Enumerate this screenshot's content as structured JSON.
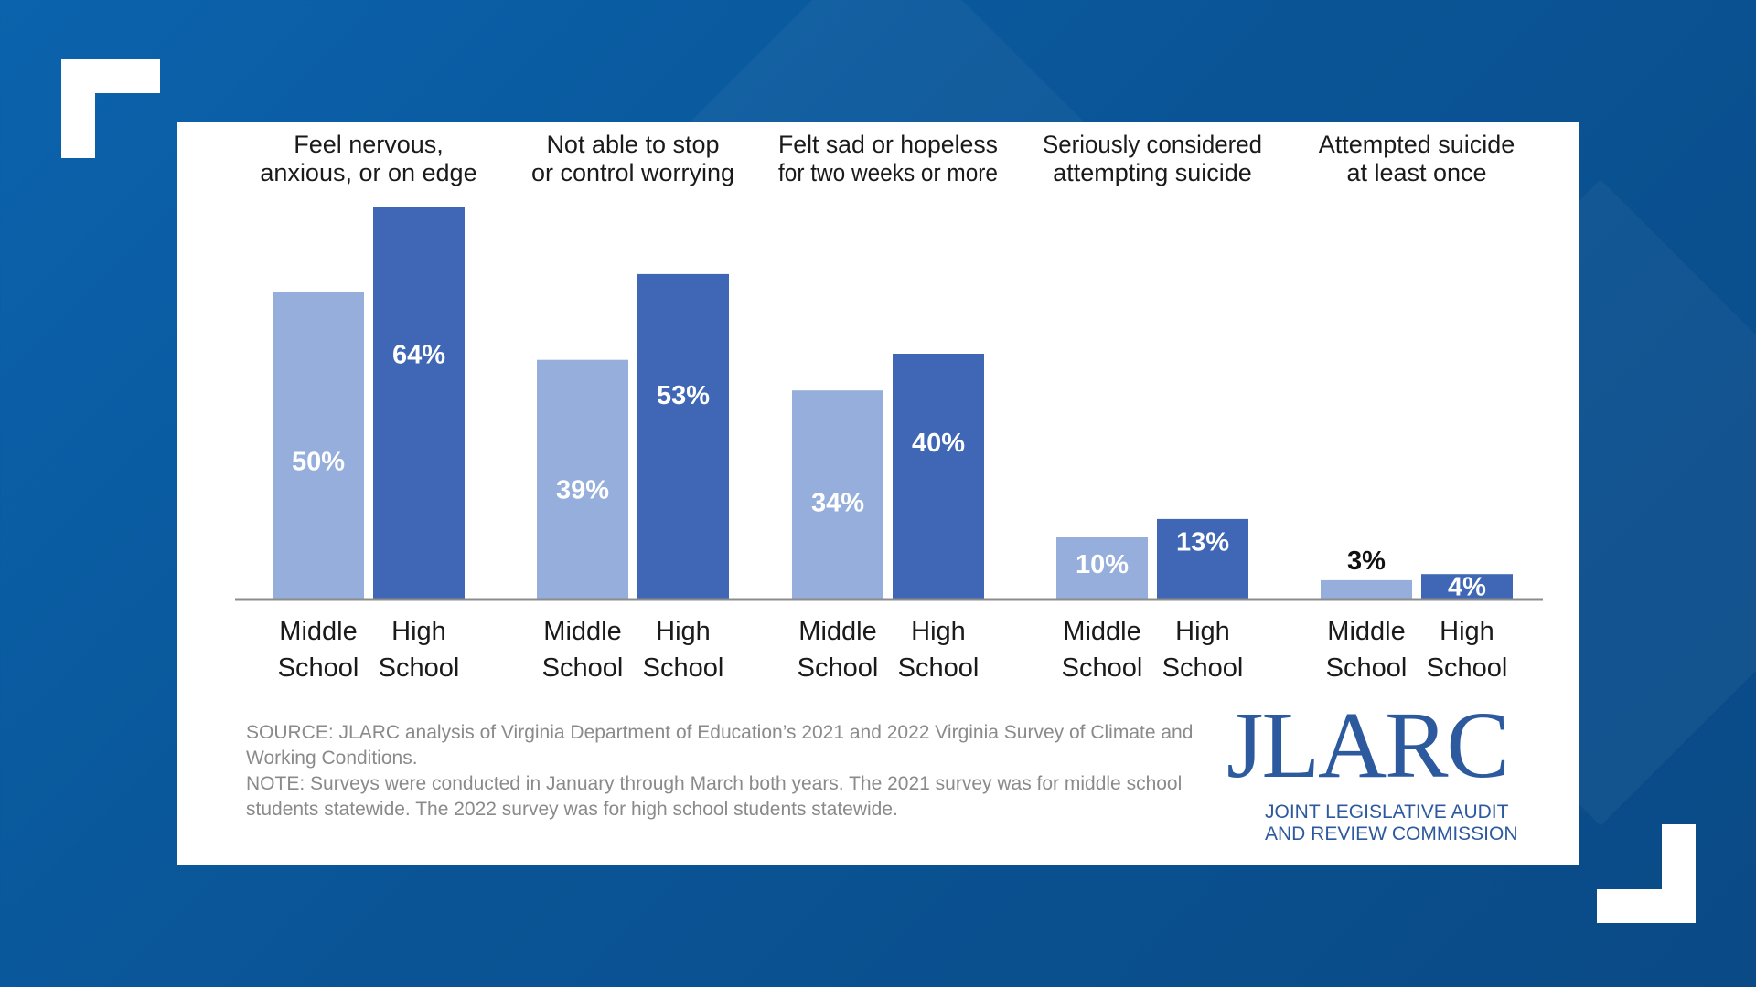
{
  "chart_data": {
    "type": "bar",
    "categories": [
      "Feel nervous, anxious, or on edge",
      "Not able to stop or control worrying",
      "Felt sad or hopeless for two weeks or more",
      "Seriously considered attempting suicide",
      "Attempted suicide at least once"
    ],
    "category_lines": [
      [
        "Feel nervous,",
        "anxious, or on edge"
      ],
      [
        "Not able to stop",
        "or control worrying"
      ],
      [
        "Felt sad or hopeless",
        "for two weeks or more"
      ],
      [
        "Seriously considered",
        "attempting suicide"
      ],
      [
        "Attempted suicide",
        "at least once"
      ]
    ],
    "series": [
      {
        "name": "Middle School",
        "label_lines": [
          "Middle",
          "School"
        ],
        "color": "#95aedb",
        "values": [
          50,
          39,
          34,
          10,
          3
        ]
      },
      {
        "name": "High School",
        "label_lines": [
          "High",
          "School"
        ],
        "color": "#3f67b5",
        "values": [
          64,
          53,
          40,
          13,
          4
        ]
      }
    ],
    "data_labels": [
      [
        "50%",
        "39%",
        "34%",
        "10%",
        "3%"
      ],
      [
        "64%",
        "53%",
        "40%",
        "13%",
        "4%"
      ]
    ],
    "ylim": [
      0,
      64
    ],
    "grid": false,
    "legend": "none"
  },
  "notes": {
    "source": "SOURCE: JLARC analysis of Virginia Department of Education’s 2021 and 2022 Virginia Survey of Climate and Working Conditions.",
    "note": "NOTE: Surveys were conducted in January through March both years. The 2021 survey was for middle school students statewide. The 2022 survey was for high school students statewide."
  },
  "logo": {
    "name": "JLARC",
    "line1": "JOINT LEGISLATIVE AUDIT",
    "line2": "AND REVIEW COMMISSION",
    "color": "#2d5a9e"
  }
}
